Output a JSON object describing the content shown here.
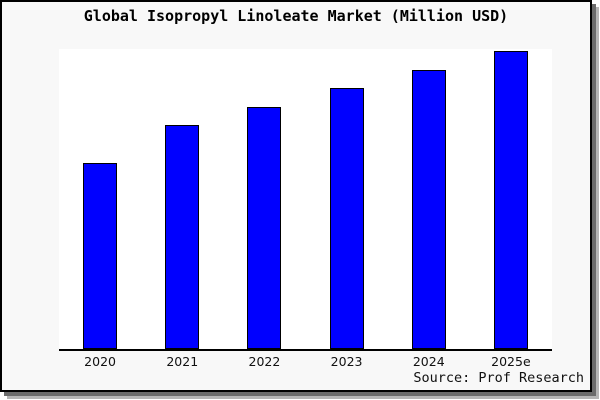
{
  "chart_data": {
    "type": "bar",
    "title": "Global Isopropyl Linoleate Market (Million USD)",
    "categories": [
      "2020",
      "2021",
      "2022",
      "2023",
      "2024",
      "2025e"
    ],
    "values": [
      100,
      120,
      130,
      140,
      150,
      160
    ],
    "xlabel": "",
    "ylabel": "",
    "ylim": [
      0,
      160
    ],
    "grid": false,
    "legend": "none",
    "bar_color": "#0000ff",
    "bar_border_color": "#000000",
    "plot_background": "#ffffff",
    "frame_background": "#f8f8f8",
    "axis_color": "#000000"
  },
  "source": {
    "label": "Source: Prof Research"
  }
}
